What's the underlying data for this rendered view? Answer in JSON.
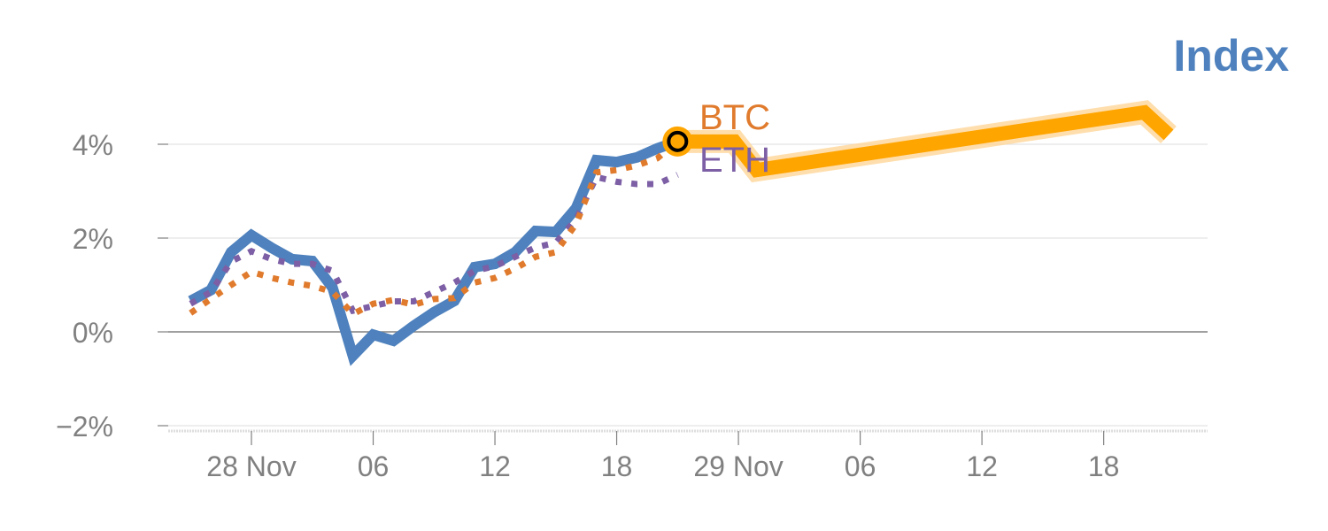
{
  "chart_data": {
    "type": "line",
    "title": "Index",
    "xlabel": "",
    "ylabel": "",
    "x_unit": "hours from 28 Nov 00:00",
    "x_ticks": [
      {
        "h": 0,
        "label": "28 Nov"
      },
      {
        "h": 6,
        "label": "06"
      },
      {
        "h": 12,
        "label": "12"
      },
      {
        "h": 18,
        "label": "18"
      },
      {
        "h": 24,
        "label": "29 Nov"
      },
      {
        "h": 30,
        "label": "06"
      },
      {
        "h": 36,
        "label": "12"
      },
      {
        "h": 42,
        "label": "18"
      }
    ],
    "y_ticks": [
      {
        "v": 4,
        "label": "4%"
      },
      {
        "v": 2,
        "label": "2%"
      },
      {
        "v": 0,
        "label": "0%"
      },
      {
        "v": -2,
        "label": "−2%"
      }
    ],
    "ylim": [
      -2.1,
      4.9
    ],
    "xlim": [
      -4.5,
      47
    ],
    "grid": true,
    "series": [
      {
        "name": "Index",
        "color": "#4e81bd",
        "style": "solid",
        "x": [
          -3,
          -2,
          -1,
          0,
          1,
          2,
          3,
          4,
          5,
          6,
          7,
          8,
          9,
          10,
          11,
          12,
          13,
          14,
          15,
          16,
          17,
          18,
          19,
          20,
          21
        ],
        "values": [
          0.66,
          0.89,
          1.7,
          2.06,
          1.79,
          1.55,
          1.51,
          0.94,
          -0.51,
          -0.06,
          -0.19,
          0.13,
          0.42,
          0.66,
          1.38,
          1.45,
          1.7,
          2.15,
          2.13,
          2.64,
          3.66,
          3.62,
          3.72,
          3.91,
          4.06
        ]
      },
      {
        "name": "BTC",
        "color": "#e07b2d",
        "style": "dotted",
        "x": [
          -3,
          -2,
          -1,
          0,
          1,
          2,
          3,
          4,
          5,
          6,
          7,
          8,
          9,
          10,
          11,
          12,
          13,
          14,
          15,
          16,
          17,
          18,
          19,
          20,
          21
        ],
        "values": [
          0.4,
          0.7,
          1.0,
          1.28,
          1.15,
          1.05,
          0.98,
          0.85,
          0.38,
          0.6,
          0.68,
          0.58,
          0.7,
          0.72,
          1.05,
          1.15,
          1.35,
          1.6,
          1.7,
          2.3,
          3.4,
          3.45,
          3.55,
          3.7,
          4.06
        ]
      },
      {
        "name": "ETH",
        "color": "#7d5fa5",
        "style": "dotted",
        "x": [
          -3,
          -2,
          -1,
          0,
          1,
          2,
          3,
          4,
          5,
          6,
          7,
          8,
          9,
          10,
          11,
          12,
          13,
          14,
          15,
          16,
          17,
          18,
          19,
          20,
          21
        ],
        "values": [
          0.6,
          0.85,
          1.5,
          1.72,
          1.55,
          1.45,
          1.45,
          1.3,
          0.45,
          0.55,
          0.65,
          0.65,
          0.85,
          1.05,
          1.3,
          1.4,
          1.6,
          1.8,
          1.9,
          2.4,
          3.3,
          3.2,
          3.15,
          3.15,
          3.35
        ]
      },
      {
        "name": "Highlight",
        "color": "#ffa500",
        "style": "highlight",
        "x": [
          21,
          23.8,
          24.9,
          44,
          45.2
        ],
        "values": [
          4.06,
          4.06,
          3.45,
          4.68,
          4.2
        ]
      }
    ],
    "labels": [
      {
        "text": "BTC",
        "color": "#e07b2d"
      },
      {
        "text": "ETH",
        "color": "#7d5fa5"
      }
    ],
    "marker": {
      "x": 21,
      "value": 4.06
    }
  }
}
